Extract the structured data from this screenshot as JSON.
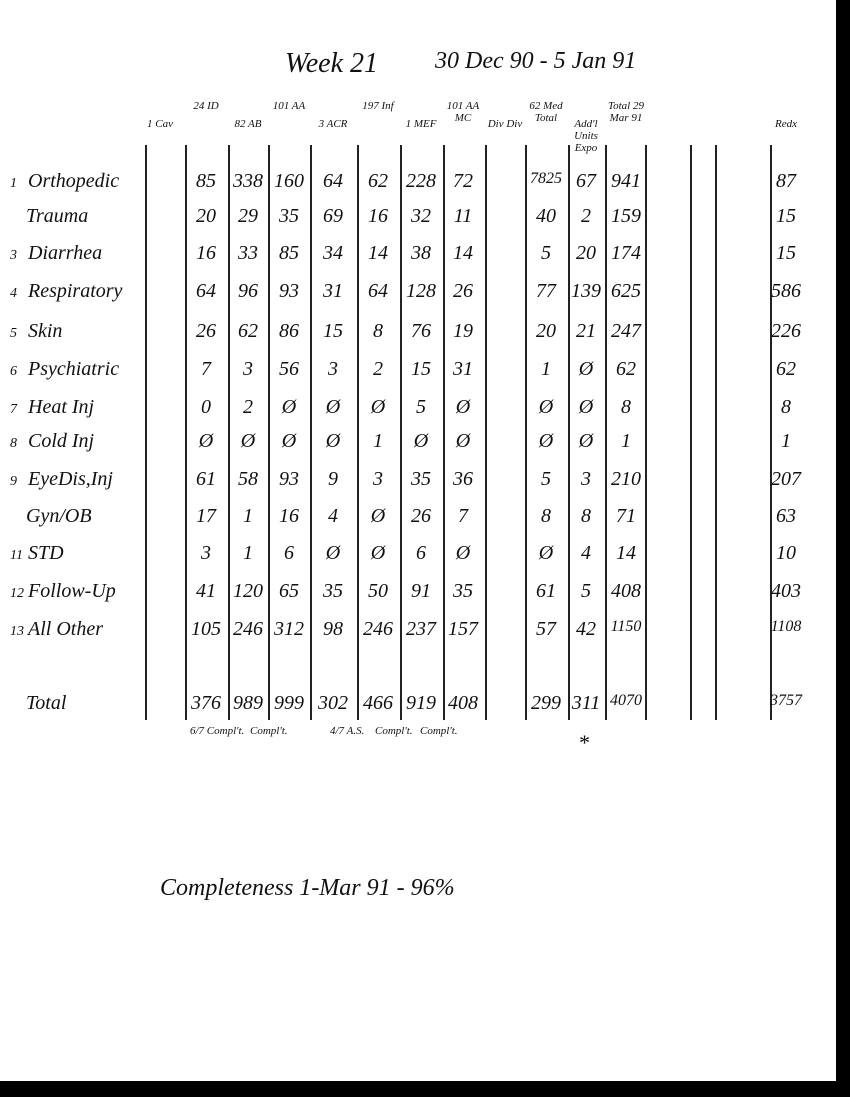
{
  "header": {
    "title": "Week 21",
    "dates": "30 Dec 90 - 5 Jan 91"
  },
  "table": {
    "columns": [
      "1 Cav",
      "24 ID",
      "82 AB",
      "101 AA",
      "3 ACR",
      "197 Inf",
      "1 MEF",
      "101 AA MC",
      "Div Div",
      "62 Med Total",
      "Add'l Units Expo",
      "Total 29 Mar 91",
      "Redx"
    ],
    "rows": [
      {
        "num": "1",
        "label": "Orthopedic",
        "cells": [
          "85",
          "338",
          "160",
          "64",
          "62",
          "228",
          "72",
          "7825",
          "67",
          "941",
          "87"
        ]
      },
      {
        "label": "Trauma",
        "cells": [
          "20",
          "29",
          "35",
          "69",
          "16",
          "32",
          "11",
          "40",
          "2",
          "159",
          "15"
        ]
      },
      {
        "num": "3",
        "label": "Diarrhea",
        "cells": [
          "16",
          "33",
          "85",
          "34",
          "14",
          "38",
          "14",
          "5",
          "20",
          "174",
          "15"
        ]
      },
      {
        "num": "4",
        "label": "Respiratory",
        "cells": [
          "64",
          "96",
          "93",
          "31",
          "64",
          "128",
          "26",
          "77",
          "139",
          "625",
          "586"
        ]
      },
      {
        "num": "5",
        "label": "Skin",
        "cells": [
          "26",
          "62",
          "86",
          "15",
          "8",
          "76",
          "19",
          "20",
          "21",
          "247",
          "226"
        ]
      },
      {
        "num": "6",
        "label": "Psychiatric",
        "cells": [
          "7",
          "3",
          "56",
          "3",
          "2",
          "15",
          "31",
          "1",
          "Ø",
          "62",
          "62"
        ]
      },
      {
        "num": "7",
        "label": "Heat Inj",
        "cells": [
          "0",
          "2",
          "Ø",
          "Ø",
          "Ø",
          "5",
          "Ø",
          "Ø",
          "Ø",
          "8",
          "8"
        ]
      },
      {
        "num": "8",
        "label": "Cold Inj",
        "cells": [
          "Ø",
          "Ø",
          "Ø",
          "Ø",
          "1",
          "Ø",
          "Ø",
          "Ø",
          "Ø",
          "1",
          "1"
        ]
      },
      {
        "num": "9",
        "label": "EyeDis,Inj",
        "cells": [
          "61",
          "58",
          "93",
          "9",
          "3",
          "35",
          "36",
          "5",
          "3",
          "210",
          "207"
        ]
      },
      {
        "label": "Gyn/OB",
        "cells": [
          "17",
          "1",
          "16",
          "4",
          "Ø",
          "26",
          "7",
          "8",
          "8",
          "71",
          "63"
        ]
      },
      {
        "num": "11",
        "label": "STD",
        "cells": [
          "3",
          "1",
          "6",
          "Ø",
          "Ø",
          "6",
          "Ø",
          "Ø",
          "4",
          "14",
          "10"
        ]
      },
      {
        "num": "12",
        "label": "Follow-Up",
        "cells": [
          "41",
          "120",
          "65",
          "35",
          "50",
          "91",
          "35",
          "61",
          "5",
          "408",
          "403"
        ]
      },
      {
        "num": "13",
        "label": "All Other",
        "cells": [
          "105",
          "246",
          "312",
          "98",
          "246",
          "237",
          "157",
          "57",
          "42",
          "1150",
          "1108"
        ]
      },
      {
        "label": "Total",
        "cells": [
          "376",
          "989",
          "999",
          "302",
          "466",
          "919",
          "408",
          "299",
          "311",
          "4070",
          "3757"
        ]
      }
    ]
  },
  "notes": [
    "6/7 Compl't.",
    "Compl't.",
    "4/7 A.S.",
    "Compl't.",
    "Compl't.",
    "*"
  ],
  "footer": "Completeness 1-Mar 91 - 96%"
}
